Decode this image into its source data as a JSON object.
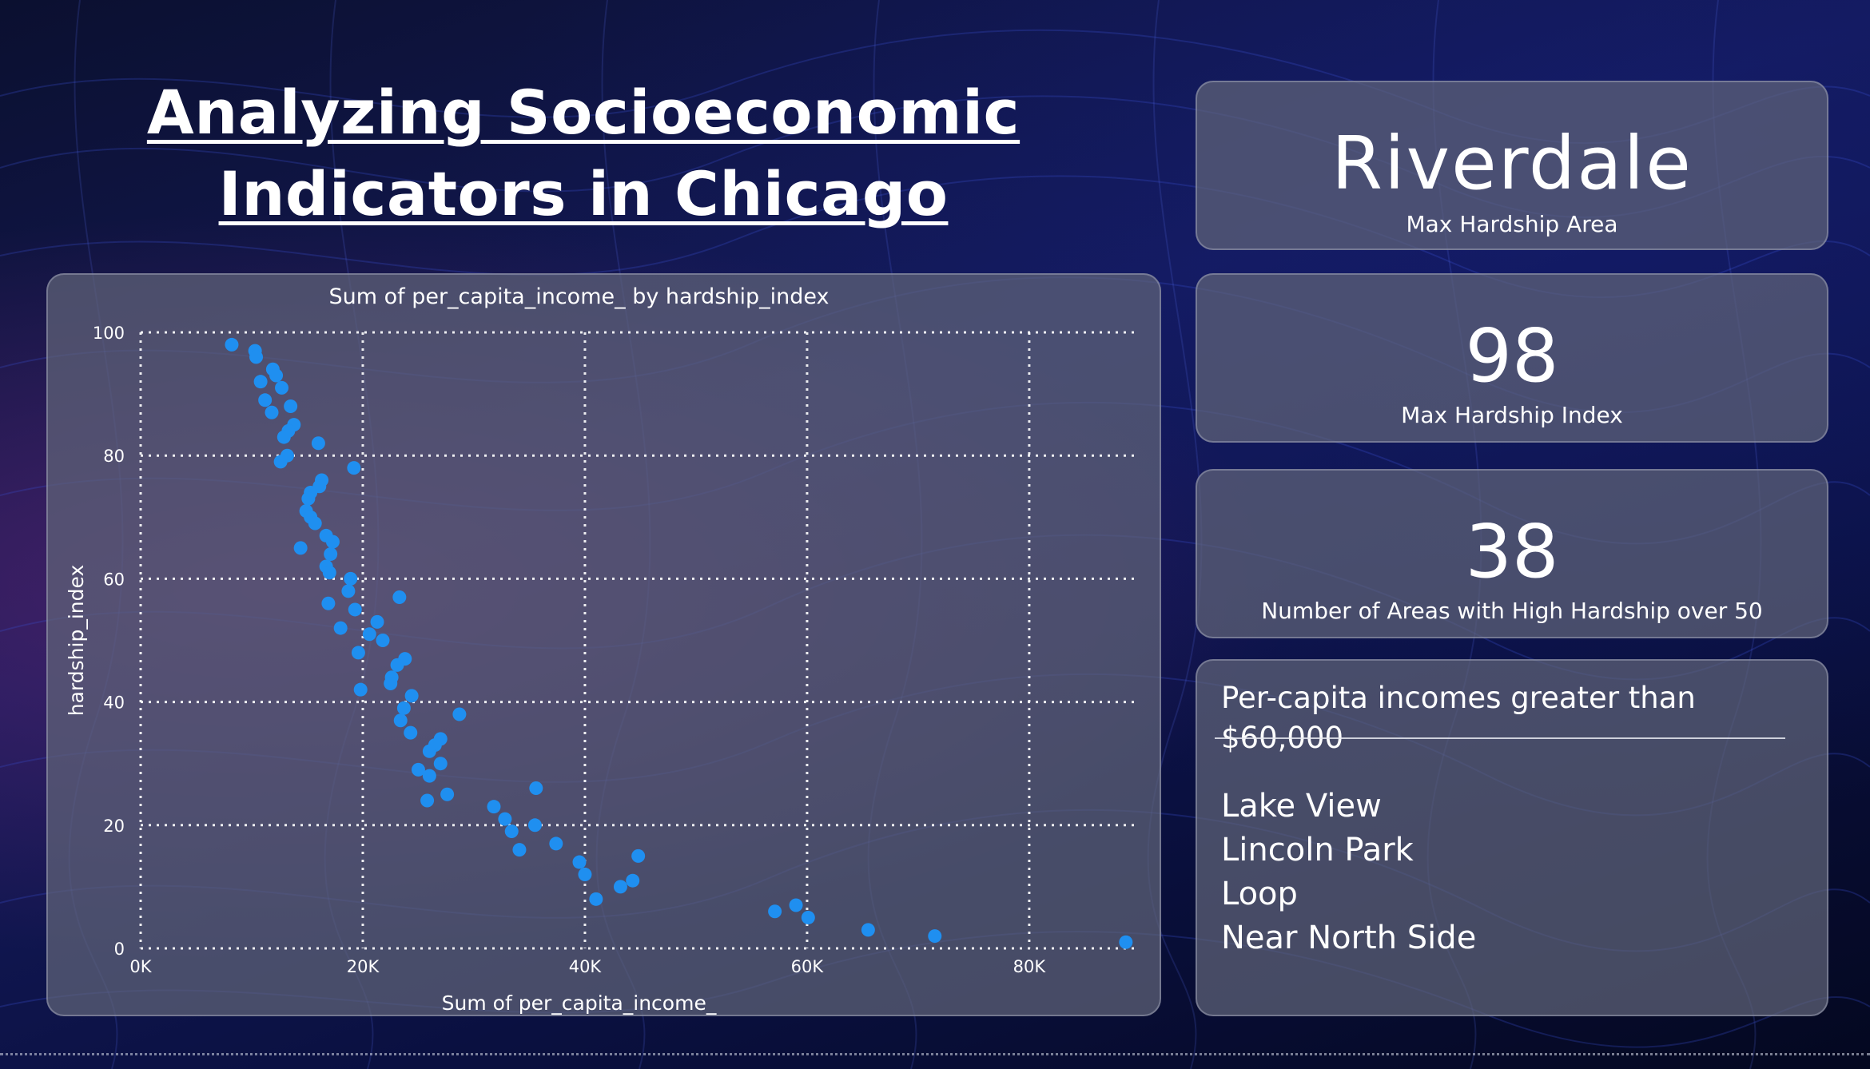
{
  "header": {
    "title_line1": "Analyzing Socioeconomic",
    "title_line2": "Indicators in Chicago"
  },
  "cards": {
    "max_area": {
      "value": "Riverdale",
      "label": "Max Hardship Area"
    },
    "max_index": {
      "value": "98",
      "label": "Max Hardship Index"
    },
    "high_count": {
      "value": "38",
      "label": "Number of Areas with High Hardship over 50"
    }
  },
  "income_list": {
    "header": "Per-capita incomes greater than $60,000",
    "items": [
      "Lake View",
      "Lincoln Park",
      "Loop",
      "Near North Side"
    ]
  },
  "colors": {
    "point": "#1f8ff0",
    "grid": "#ffffff"
  },
  "chart_data": {
    "type": "scatter",
    "title": "Sum of per_capita_income_ by hardship_index",
    "xlabel": "Sum of per_capita_income_",
    "ylabel": "hardship_index",
    "xlim": [
      0,
      89000
    ],
    "ylim": [
      0,
      100
    ],
    "xticks": [
      0,
      20000,
      40000,
      60000,
      80000
    ],
    "xtick_labels": [
      "0K",
      "20K",
      "40K",
      "60K",
      "80K"
    ],
    "yticks": [
      0,
      20,
      40,
      60,
      80,
      100
    ],
    "ytick_labels": [
      "0",
      "20",
      "40",
      "60",
      "80",
      "100"
    ],
    "grid": true,
    "points": [
      {
        "x": 8200,
        "y": 98
      },
      {
        "x": 10300,
        "y": 97
      },
      {
        "x": 10400,
        "y": 96
      },
      {
        "x": 11900,
        "y": 94
      },
      {
        "x": 12200,
        "y": 93
      },
      {
        "x": 12700,
        "y": 91
      },
      {
        "x": 10800,
        "y": 92
      },
      {
        "x": 11200,
        "y": 89
      },
      {
        "x": 13500,
        "y": 88
      },
      {
        "x": 11800,
        "y": 87
      },
      {
        "x": 13800,
        "y": 85
      },
      {
        "x": 13300,
        "y": 84
      },
      {
        "x": 12900,
        "y": 83
      },
      {
        "x": 16000,
        "y": 82
      },
      {
        "x": 13200,
        "y": 80
      },
      {
        "x": 12600,
        "y": 79
      },
      {
        "x": 19200,
        "y": 78
      },
      {
        "x": 16300,
        "y": 76
      },
      {
        "x": 16100,
        "y": 75
      },
      {
        "x": 15300,
        "y": 74
      },
      {
        "x": 15100,
        "y": 73
      },
      {
        "x": 14900,
        "y": 71
      },
      {
        "x": 15300,
        "y": 70
      },
      {
        "x": 15700,
        "y": 69
      },
      {
        "x": 16700,
        "y": 67
      },
      {
        "x": 17300,
        "y": 66
      },
      {
        "x": 14400,
        "y": 65
      },
      {
        "x": 17100,
        "y": 64
      },
      {
        "x": 16700,
        "y": 62
      },
      {
        "x": 17000,
        "y": 61
      },
      {
        "x": 18900,
        "y": 60
      },
      {
        "x": 18700,
        "y": 58
      },
      {
        "x": 23300,
        "y": 57
      },
      {
        "x": 16900,
        "y": 56
      },
      {
        "x": 19300,
        "y": 55
      },
      {
        "x": 21300,
        "y": 53
      },
      {
        "x": 18000,
        "y": 52
      },
      {
        "x": 20600,
        "y": 51
      },
      {
        "x": 21800,
        "y": 50
      },
      {
        "x": 19600,
        "y": 48
      },
      {
        "x": 23800,
        "y": 47
      },
      {
        "x": 23100,
        "y": 46
      },
      {
        "x": 22600,
        "y": 44
      },
      {
        "x": 22500,
        "y": 43
      },
      {
        "x": 19800,
        "y": 42
      },
      {
        "x": 24400,
        "y": 41
      },
      {
        "x": 23700,
        "y": 39
      },
      {
        "x": 28700,
        "y": 38
      },
      {
        "x": 23400,
        "y": 37
      },
      {
        "x": 24300,
        "y": 35
      },
      {
        "x": 27000,
        "y": 34
      },
      {
        "x": 26500,
        "y": 33
      },
      {
        "x": 26000,
        "y": 32
      },
      {
        "x": 27000,
        "y": 30
      },
      {
        "x": 25000,
        "y": 29
      },
      {
        "x": 26000,
        "y": 28
      },
      {
        "x": 35600,
        "y": 26
      },
      {
        "x": 27600,
        "y": 25
      },
      {
        "x": 25800,
        "y": 24
      },
      {
        "x": 31800,
        "y": 23
      },
      {
        "x": 32800,
        "y": 21
      },
      {
        "x": 35500,
        "y": 20
      },
      {
        "x": 33400,
        "y": 19
      },
      {
        "x": 37400,
        "y": 17
      },
      {
        "x": 34100,
        "y": 16
      },
      {
        "x": 44800,
        "y": 15
      },
      {
        "x": 39500,
        "y": 14
      },
      {
        "x": 40000,
        "y": 12
      },
      {
        "x": 44300,
        "y": 11
      },
      {
        "x": 43200,
        "y": 10
      },
      {
        "x": 41000,
        "y": 8
      },
      {
        "x": 59000,
        "y": 7
      },
      {
        "x": 57100,
        "y": 6
      },
      {
        "x": 60100,
        "y": 5
      },
      {
        "x": 65500,
        "y": 3
      },
      {
        "x": 71500,
        "y": 2
      },
      {
        "x": 88700,
        "y": 1
      }
    ]
  }
}
